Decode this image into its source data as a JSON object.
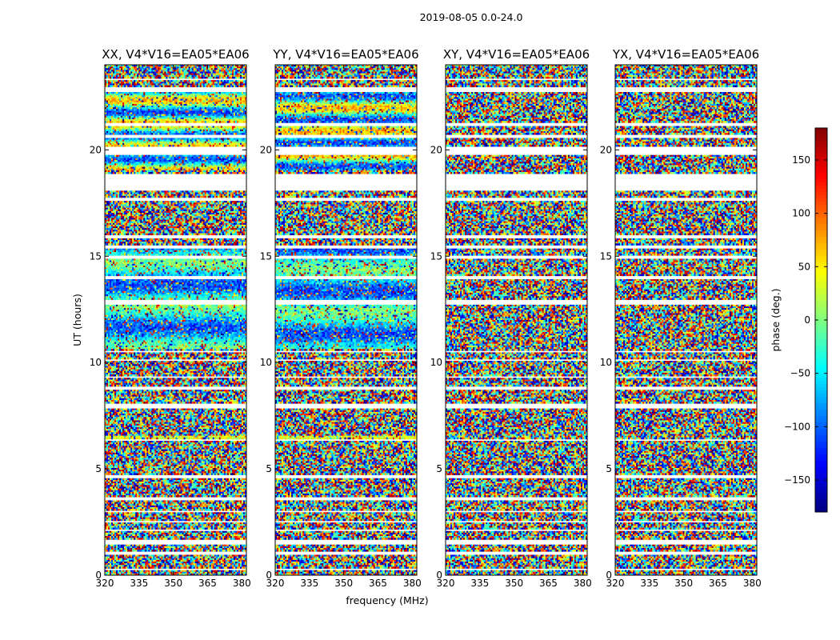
{
  "figure": {
    "suptitle": "2019-08-05 0.0-24.0"
  },
  "chart_data": {
    "type": "heatmap",
    "x": {
      "label": "frequency (MHz)",
      "range": [
        320,
        382
      ],
      "ticks": [
        320,
        335,
        350,
        365,
        380
      ],
      "tick_labels": [
        "320",
        "335",
        "350",
        "365",
        "380"
      ]
    },
    "y": {
      "label": "UT (hours)",
      "range": [
        0,
        24
      ],
      "ticks": [
        0,
        5,
        10,
        15,
        20
      ],
      "tick_labels": [
        "0",
        "5",
        "10",
        "15",
        "20"
      ]
    },
    "colorbar": {
      "label": "phase (deg.)",
      "range": [
        -180,
        180
      ],
      "ticks": [
        150,
        100,
        50,
        0,
        -50,
        -100,
        -150
      ],
      "tick_labels": [
        "150",
        "100",
        "50",
        "0",
        "−50",
        "−100",
        "−150"
      ],
      "colormap": "jet"
    },
    "panels": [
      {
        "title": "XX, V4*V16=EA05*EA06",
        "pol": "XX"
      },
      {
        "title": "YY, V4*V16=EA05*EA06",
        "pol": "YY"
      },
      {
        "title": "XY, V4*V16=EA05*EA06",
        "pol": "XY"
      },
      {
        "title": "YX, V4*V16=EA05*EA06",
        "pol": "YX"
      }
    ],
    "flagged_ut_ranges": [
      [
        0.2,
        0.3
      ],
      [
        0.95,
        1.1
      ],
      [
        1.45,
        1.7
      ],
      [
        2.05,
        2.15
      ],
      [
        2.45,
        2.55
      ],
      [
        2.95,
        3.05
      ],
      [
        3.55,
        3.65
      ],
      [
        4.05,
        4.1
      ],
      [
        4.6,
        4.75
      ],
      [
        5.5,
        5.55
      ],
      [
        6.3,
        6.38
      ],
      [
        7.85,
        8.1
      ],
      [
        8.7,
        8.85
      ],
      [
        9.3,
        9.35
      ],
      [
        10.1,
        10.2
      ],
      [
        10.5,
        10.6
      ],
      [
        12.75,
        12.95
      ],
      [
        13.95,
        14.05
      ],
      [
        14.9,
        15.05
      ],
      [
        15.4,
        15.5
      ],
      [
        15.85,
        16.0
      ],
      [
        17.6,
        17.75
      ],
      [
        18.05,
        18.2
      ],
      [
        18.2,
        18.85
      ],
      [
        19.8,
        20.2
      ],
      [
        20.6,
        20.75
      ],
      [
        21.15,
        21.3
      ],
      [
        22.75,
        22.95
      ],
      [
        23.25,
        23.35
      ]
    ]
  }
}
